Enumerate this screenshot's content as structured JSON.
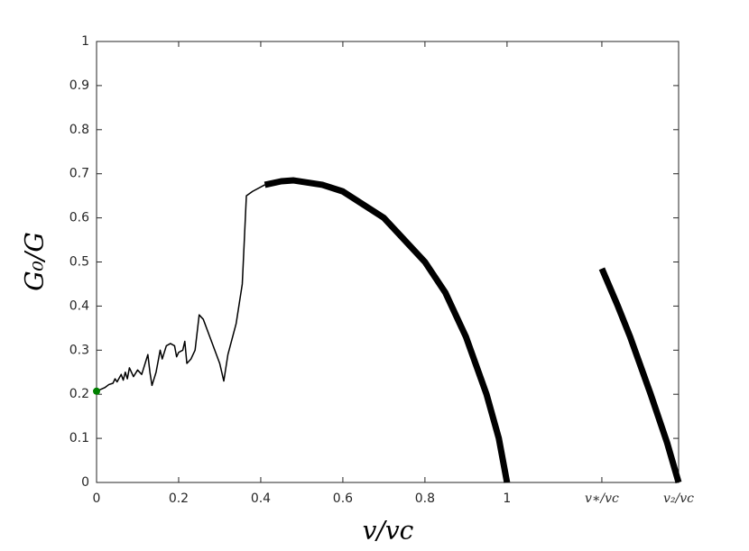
{
  "chart_data": {
    "type": "line",
    "xlabel": "v/vc",
    "ylabel": "G₀/G",
    "xlim": [
      0,
      1.418
    ],
    "ylim": [
      0,
      1
    ],
    "xticks": [
      0,
      0.2,
      0.4,
      0.6,
      0.8,
      1,
      {
        "value": 1.231,
        "label": "v∗/vc"
      },
      {
        "value": 1.418,
        "label": "v₂/vc"
      }
    ],
    "yticks": [
      0,
      0.1,
      0.2,
      0.3,
      0.4,
      0.5,
      0.6,
      0.7,
      0.8,
      0.9,
      1
    ],
    "series": [
      {
        "color": "#000000",
        "line_width": 1.5,
        "x": [
          0,
          0.02,
          0.03,
          0.04,
          0.045,
          0.05,
          0.06,
          0.065,
          0.07,
          0.075,
          0.08,
          0.09,
          0.1,
          0.11,
          0.12,
          0.125,
          0.13,
          0.135,
          0.145,
          0.155,
          0.16,
          0.17,
          0.18,
          0.19,
          0.195,
          0.2,
          0.21,
          0.215,
          0.22,
          0.23,
          0.24,
          0.25,
          0.26,
          0.28,
          0.3,
          0.31,
          0.32,
          0.34,
          0.355,
          0.36,
          0.365,
          0.38,
          0.41
        ],
        "values": [
          0.207,
          0.215,
          0.222,
          0.225,
          0.235,
          0.228,
          0.245,
          0.232,
          0.25,
          0.235,
          0.26,
          0.24,
          0.255,
          0.245,
          0.275,
          0.29,
          0.25,
          0.22,
          0.25,
          0.3,
          0.28,
          0.31,
          0.315,
          0.31,
          0.285,
          0.295,
          0.3,
          0.32,
          0.27,
          0.28,
          0.3,
          0.38,
          0.37,
          0.32,
          0.27,
          0.23,
          0.29,
          0.36,
          0.45,
          0.55,
          0.65,
          0.66,
          0.675
        ]
      },
      {
        "color": "#000000",
        "line_width": 7,
        "x": [
          0.41,
          0.45,
          0.48,
          0.55,
          0.6,
          0.7,
          0.8,
          0.85,
          0.9,
          0.95,
          0.98,
          1.0
        ],
        "values": [
          0.675,
          0.683,
          0.685,
          0.675,
          0.66,
          0.6,
          0.5,
          0.43,
          0.33,
          0.2,
          0.1,
          0
        ]
      },
      {
        "color": "#000000",
        "line_width": 7,
        "x": [
          1.231,
          1.27,
          1.3,
          1.35,
          1.39,
          1.418
        ],
        "values": [
          0.485,
          0.4,
          0.33,
          0.2,
          0.09,
          0
        ]
      }
    ],
    "point": {
      "x": 0,
      "y": 0.207,
      "color": "#008000"
    }
  }
}
